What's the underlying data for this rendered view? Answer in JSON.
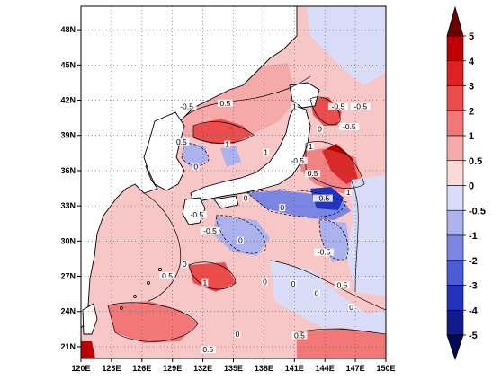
{
  "map": {
    "lon_range": [
      120,
      150
    ],
    "lat_range": [
      20,
      50
    ],
    "x_ticks": [
      "120E",
      "123E",
      "126E",
      "129E",
      "132E",
      "135E",
      "138E",
      "141E",
      "144E",
      "147E",
      "150E"
    ],
    "y_ticks": [
      "21N",
      "24N",
      "27N",
      "30N",
      "33N",
      "36N",
      "39N",
      "42N",
      "45N",
      "48N"
    ],
    "gridlines": "dotted",
    "contour_labels": [
      {
        "text": "-0.5",
        "lon": 130.4,
        "lat": 41.3
      },
      {
        "text": "0.5",
        "lon": 134.2,
        "lat": 41.6
      },
      {
        "text": "0.5",
        "lon": 129.9,
        "lat": 38.3
      },
      {
        "text": "1",
        "lon": 134.4,
        "lat": 38.1
      },
      {
        "text": "0",
        "lon": 131.3,
        "lat": 36.2
      },
      {
        "text": "1",
        "lon": 138.2,
        "lat": 37.4
      },
      {
        "text": "1",
        "lon": 141.0,
        "lat": 41.3
      },
      {
        "text": "-0.5",
        "lon": 145.3,
        "lat": 41.3
      },
      {
        "text": "-0.5",
        "lon": 146.4,
        "lat": 39.6
      },
      {
        "text": "-0.5",
        "lon": 147.5,
        "lat": 41.3
      },
      {
        "text": "0",
        "lon": 143.5,
        "lat": 39.4
      },
      {
        "text": "1",
        "lon": 142.6,
        "lat": 37.9
      },
      {
        "text": "-0.5",
        "lon": 141.3,
        "lat": 36.7
      },
      {
        "text": "0.5",
        "lon": 142.8,
        "lat": 35.6
      },
      {
        "text": "1",
        "lon": 146.3,
        "lat": 34.0
      },
      {
        "text": "-0.5",
        "lon": 143.8,
        "lat": 33.5
      },
      {
        "text": "-0.5",
        "lon": 131.4,
        "lat": 32.1
      },
      {
        "text": "-0.5",
        "lon": 132.7,
        "lat": 30.7
      },
      {
        "text": "0",
        "lon": 136.2,
        "lat": 33.5
      },
      {
        "text": "0",
        "lon": 139.8,
        "lat": 32.7
      },
      {
        "text": "0",
        "lon": 135.7,
        "lat": 29.9
      },
      {
        "text": "-0.5",
        "lon": 143.9,
        "lat": 28.9
      },
      {
        "text": "0",
        "lon": 130.2,
        "lat": 27.9
      },
      {
        "text": "0.5",
        "lon": 128.5,
        "lat": 26.9
      },
      {
        "text": "1",
        "lon": 132.2,
        "lat": 26.3
      },
      {
        "text": "0",
        "lon": 138.1,
        "lat": 26.4
      },
      {
        "text": "0",
        "lon": 140.9,
        "lat": 26.2
      },
      {
        "text": "0.5",
        "lon": 145.7,
        "lat": 26.1
      },
      {
        "text": "0",
        "lon": 143.2,
        "lat": 25.4
      },
      {
        "text": "0",
        "lon": 146.6,
        "lat": 24.2
      },
      {
        "text": "0.5",
        "lon": 132.5,
        "lat": 20.6
      },
      {
        "text": "0",
        "lon": 135.4,
        "lat": 21.9
      },
      {
        "text": "0.5",
        "lon": 141.5,
        "lat": 21.8
      }
    ]
  },
  "colorbar": {
    "labels": [
      "5",
      "4",
      "3",
      "2",
      "1",
      "0.5",
      "0",
      "-0.5",
      "-1",
      "-2",
      "-3",
      "-4",
      "-5"
    ],
    "colors": [
      "#6b0000",
      "#c00000",
      "#de2121",
      "#eb4c4c",
      "#f27878",
      "#f6a9a9",
      "#fbd9d9",
      "#d9dcf6",
      "#abb2ee",
      "#7a86e2",
      "#4a5cd6",
      "#2233c0",
      "#101c8a",
      "#060a55"
    ]
  }
}
